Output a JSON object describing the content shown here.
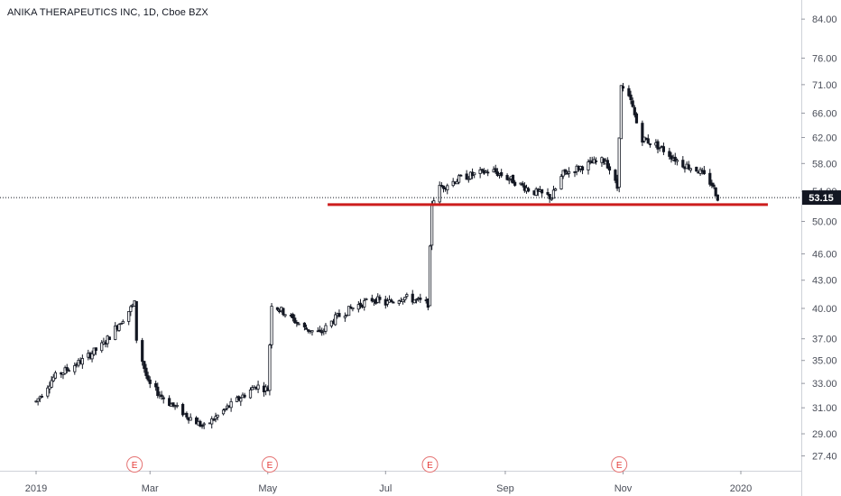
{
  "chart_data": {
    "type": "candlestick",
    "title": "ANIKA THERAPEUTICS INC, 1D, Cboe BZX",
    "y_axis": {
      "scale": "log",
      "range": [
        26.5,
        87
      ],
      "ticks": [
        "84.00",
        "76.00",
        "71.00",
        "66.00",
        "62.00",
        "58.00",
        "54.00",
        "50.00",
        "46.00",
        "43.00",
        "40.00",
        "37.00",
        "35.00",
        "33.00",
        "31.00",
        "29.00",
        "27.40"
      ]
    },
    "x_axis": {
      "ticks": [
        {
          "label": "2019",
          "date": "2019-01-01"
        },
        {
          "label": "Mar",
          "date": "2019-03-01"
        },
        {
          "label": "May",
          "date": "2019-05-01"
        },
        {
          "label": "Jul",
          "date": "2019-07-01"
        },
        {
          "label": "Sep",
          "date": "2019-09-01"
        },
        {
          "label": "Nov",
          "date": "2019-11-01"
        },
        {
          "label": "2020",
          "date": "2020-01-01"
        }
      ]
    },
    "last_price": {
      "value": 53.15,
      "label": "53.15",
      "color": "#131722"
    },
    "support_line": {
      "price": 52.2,
      "start_date": "2019-06-01",
      "end_date": "2020-01-15",
      "color": "#cc1d1d"
    },
    "earnings_markers": [
      {
        "date": "2019-02-21",
        "label": "E"
      },
      {
        "date": "2019-05-02",
        "label": "E"
      },
      {
        "date": "2019-07-24",
        "label": "E"
      },
      {
        "date": "2019-10-30",
        "label": "E"
      }
    ],
    "price_anchors": [
      [
        "2019-01-01",
        31.5
      ],
      [
        "2019-01-10",
        33.5
      ],
      [
        "2019-01-25",
        35.0
      ],
      [
        "2019-02-05",
        36.5
      ],
      [
        "2019-02-15",
        39.0
      ],
      [
        "2019-02-21",
        40.5
      ],
      [
        "2019-02-22",
        37.0
      ],
      [
        "2019-02-28",
        33.0
      ],
      [
        "2019-03-10",
        31.5
      ],
      [
        "2019-03-22",
        30.2
      ],
      [
        "2019-03-29",
        29.5
      ],
      [
        "2019-04-10",
        31.0
      ],
      [
        "2019-04-25",
        32.8
      ],
      [
        "2019-05-01",
        32.5
      ],
      [
        "2019-05-03",
        40.5
      ],
      [
        "2019-05-10",
        39.5
      ],
      [
        "2019-05-20",
        38.0
      ],
      [
        "2019-05-28",
        37.5
      ],
      [
        "2019-06-05",
        39.0
      ],
      [
        "2019-06-15",
        40.2
      ],
      [
        "2019-06-25",
        41.0
      ],
      [
        "2019-07-01",
        40.5
      ],
      [
        "2019-07-10",
        41.2
      ],
      [
        "2019-07-23",
        40.5
      ],
      [
        "2019-07-25",
        52.5
      ],
      [
        "2019-07-29",
        54.5
      ],
      [
        "2019-08-10",
        56.0
      ],
      [
        "2019-08-25",
        57.0
      ],
      [
        "2019-09-05",
        55.5
      ],
      [
        "2019-09-15",
        54.0
      ],
      [
        "2019-09-25",
        53.2
      ],
      [
        "2019-10-01",
        56.5
      ],
      [
        "2019-10-15",
        58.0
      ],
      [
        "2019-10-23",
        58.5
      ],
      [
        "2019-10-29",
        54.5
      ],
      [
        "2019-10-31",
        70.5
      ],
      [
        "2019-11-05",
        68.0
      ],
      [
        "2019-11-10",
        62.0
      ],
      [
        "2019-11-20",
        60.5
      ],
      [
        "2019-12-01",
        58.0
      ],
      [
        "2019-12-10",
        57.0
      ],
      [
        "2019-12-17",
        55.0
      ],
      [
        "2019-12-20",
        53.15
      ]
    ]
  }
}
